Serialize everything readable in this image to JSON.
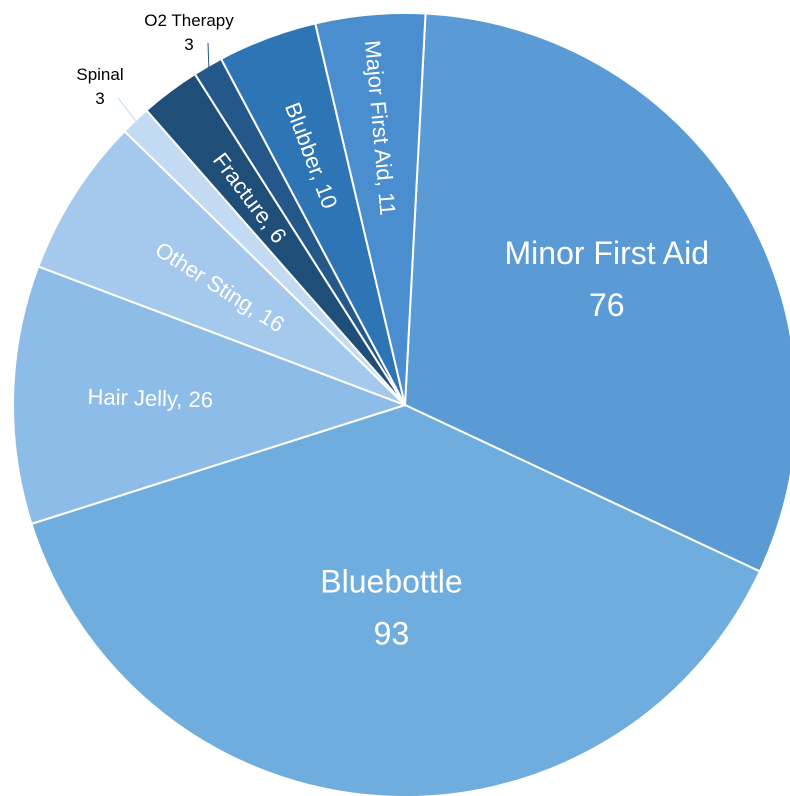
{
  "chart_data": {
    "type": "pie",
    "start_angle_deg": 3,
    "direction": "clockwise",
    "slices": [
      {
        "category": "Minor First Aid",
        "value": 76,
        "color": "#5b9bd5",
        "label_style": "two-line"
      },
      {
        "category": "Bluebottle",
        "value": 93,
        "color": "#6fadde",
        "label_style": "two-line"
      },
      {
        "category": "Hair Jelly",
        "value": 26,
        "color": "#8dbce8",
        "label_style": "inline"
      },
      {
        "category": "Other Sting",
        "value": 16,
        "color": "#a4c9ec",
        "label_style": "inline"
      },
      {
        "category": "Spinal",
        "value": 3,
        "color": "#c2dbf2",
        "label_style": "callout"
      },
      {
        "category": "Fracture",
        "value": 6,
        "color": "#1f4e79",
        "label_style": "inline"
      },
      {
        "category": "O2 Therapy",
        "value": 3,
        "color": "#24578a",
        "label_style": "callout"
      },
      {
        "category": "Blubber",
        "value": 10,
        "color": "#2e75b6",
        "label_style": "inline"
      },
      {
        "category": "Major First Aid",
        "value": 11,
        "color": "#4a8ed0",
        "label_style": "inline"
      }
    ],
    "label_separator": ", "
  }
}
